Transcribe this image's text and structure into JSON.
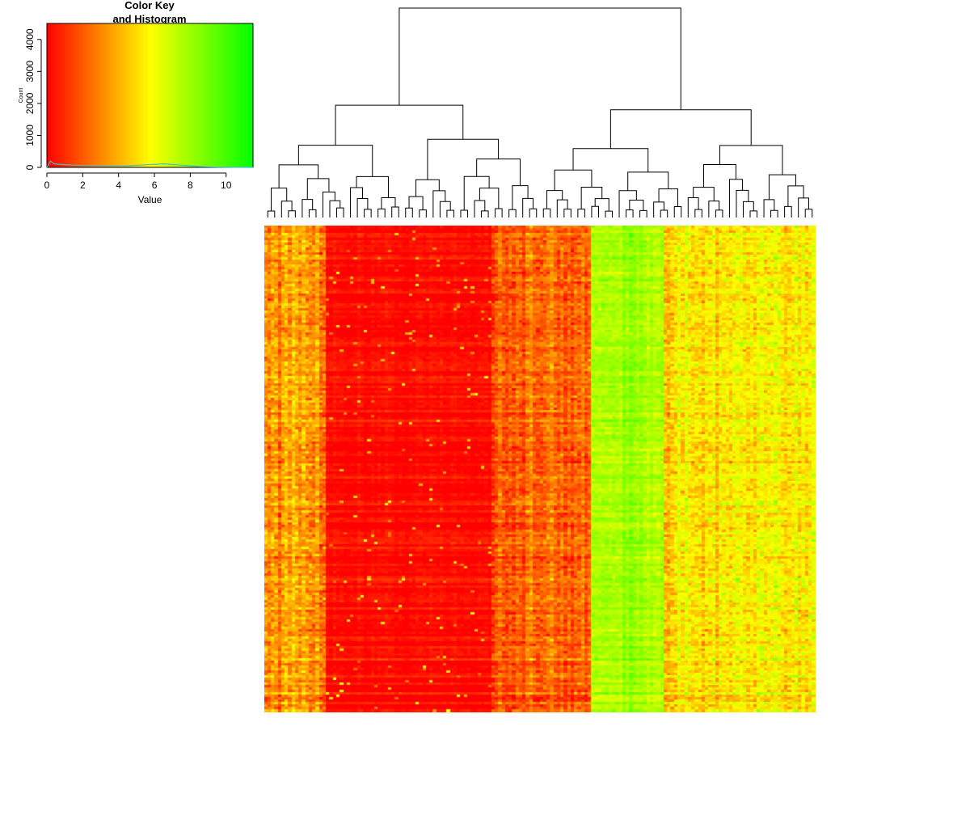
{
  "chart_data": [
    {
      "type": "histogram",
      "title": "Color Key",
      "subtitle": "and Histogram",
      "xlabel": "Value",
      "ylabel": "Count",
      "xlim": [
        0,
        11.5
      ],
      "ylim": [
        0,
        4500
      ],
      "xticks": [
        "0",
        "2",
        "4",
        "6",
        "8",
        "10"
      ],
      "yticks": [
        "0",
        "1000",
        "2000",
        "3000",
        "4000"
      ],
      "colormap": [
        "#ff0000",
        "#ff8000",
        "#ffff00",
        "#80ff00",
        "#00ff00"
      ],
      "line_color": "#40c0d0",
      "histogram_counts": [
        {
          "x": 0.0,
          "y": 0
        },
        {
          "x": 0.2,
          "y": 200
        },
        {
          "x": 0.4,
          "y": 110
        },
        {
          "x": 0.8,
          "y": 90
        },
        {
          "x": 1.5,
          "y": 70
        },
        {
          "x": 2.5,
          "y": 55
        },
        {
          "x": 3.5,
          "y": 45
        },
        {
          "x": 4.5,
          "y": 50
        },
        {
          "x": 5.5,
          "y": 80
        },
        {
          "x": 6.5,
          "y": 110
        },
        {
          "x": 7.5,
          "y": 70
        },
        {
          "x": 8.5,
          "y": 25
        },
        {
          "x": 9.5,
          "y": 8
        },
        {
          "x": 10.5,
          "y": 2
        },
        {
          "x": 11.5,
          "y": 0
        }
      ]
    },
    {
      "type": "heatmap",
      "rows": 200,
      "columns": 160,
      "value_range": [
        0,
        11.5
      ],
      "colormap": [
        "#ff0000",
        "#ff8000",
        "#ffff00",
        "#80ff00",
        "#00ff00"
      ],
      "column_blocks": [
        {
          "columns": 18,
          "mean": 3.5,
          "spread": 1.3
        },
        {
          "columns": 48,
          "mean": 0.2,
          "spread": 0.35,
          "outlier_rate": 0.02
        },
        {
          "columns": 29,
          "mean": 2.2,
          "spread": 1.1
        },
        {
          "columns": 21,
          "mean": 7.8,
          "spread": 0.7
        },
        {
          "columns": 44,
          "mean": 5.2,
          "spread": 1.2
        }
      ],
      "dendrogram": {
        "side": "top",
        "groups": 2
      }
    }
  ]
}
